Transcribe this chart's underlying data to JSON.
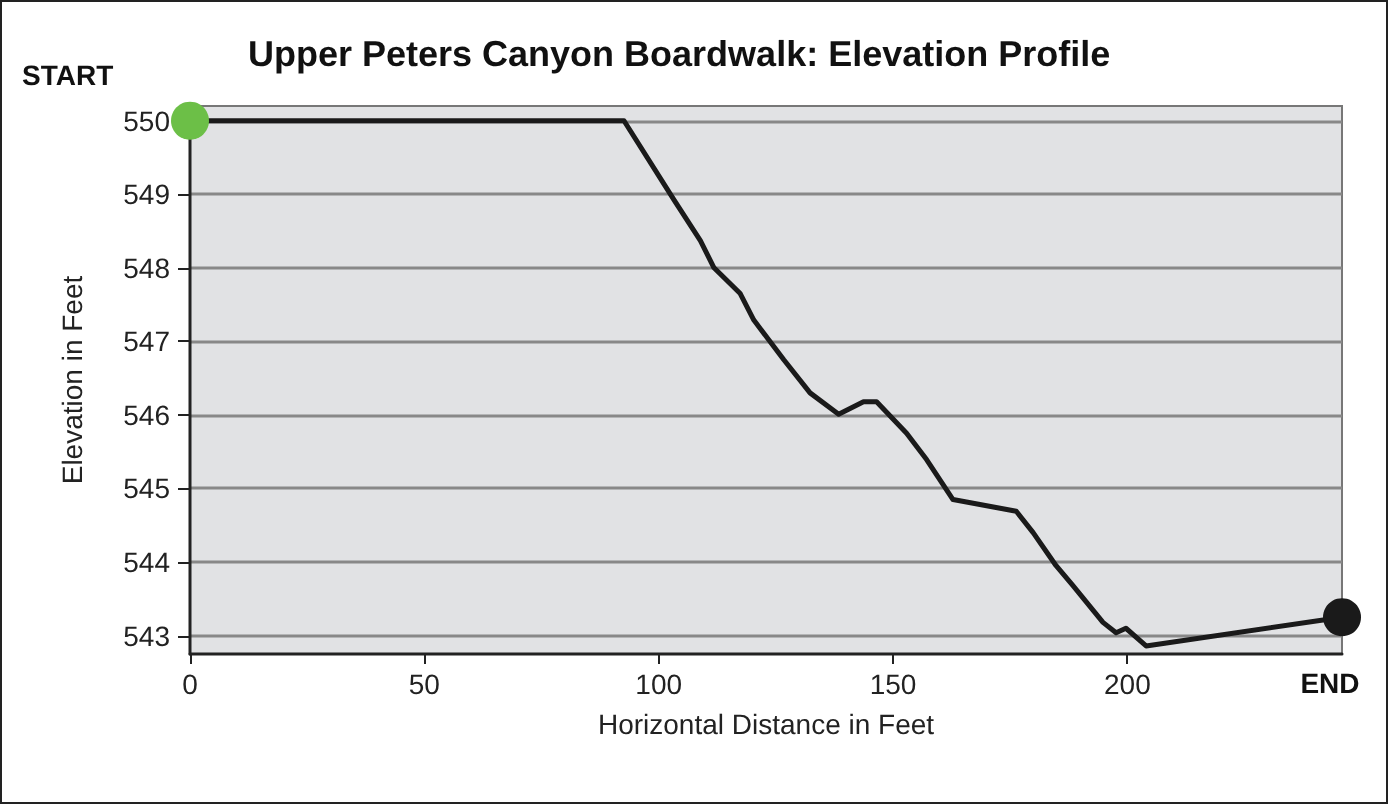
{
  "chart_data": {
    "type": "line",
    "title": "Upper Peters Canyon Boardwalk: Elevation Profile",
    "xlabel": "Horizontal Distance in Feet",
    "ylabel": "Elevation in Feet",
    "series": [
      {
        "color": "#1a1a1a",
        "x": [
          0,
          92.6,
          103.3,
          108.9,
          111.8,
          117.4,
          120.3,
          126.7,
          132.3,
          138.4,
          143.7,
          146.5,
          152.9,
          157.2,
          162.8,
          176.3,
          179.9,
          184.8,
          188.4,
          194.8,
          197.6,
          199.7,
          204,
          245.8
        ],
        "values": [
          550,
          550,
          548.92,
          548.37,
          548.0,
          547.65,
          547.29,
          546.75,
          546.3,
          546.01,
          546.18,
          546.18,
          545.75,
          545.39,
          544.85,
          544.69,
          544.4,
          543.95,
          543.68,
          543.18,
          543.04,
          543.1,
          542.86,
          543.25
        ]
      },
      {
        "type": "scatter",
        "marker": "circle",
        "x": [
          0,
          245.8
        ],
        "values": [
          550,
          543.25
        ],
        "colors": [
          "#6cbf47",
          "#1a1a1a"
        ]
      }
    ],
    "annotations": [
      {
        "text": "START",
        "x": 0,
        "y": 550
      },
      {
        "text": "END",
        "x": 245.8,
        "y": 543.25
      }
    ],
    "xlim": [
      0,
      245.8
    ],
    "xticks": [
      0,
      50,
      100,
      150,
      200
    ],
    "ylim": [
      542.75,
      550.2
    ],
    "yticks": [
      543,
      544,
      545,
      546,
      547,
      548,
      549,
      550
    ],
    "grid": "y",
    "marker": "none",
    "line_style": "solid"
  }
}
